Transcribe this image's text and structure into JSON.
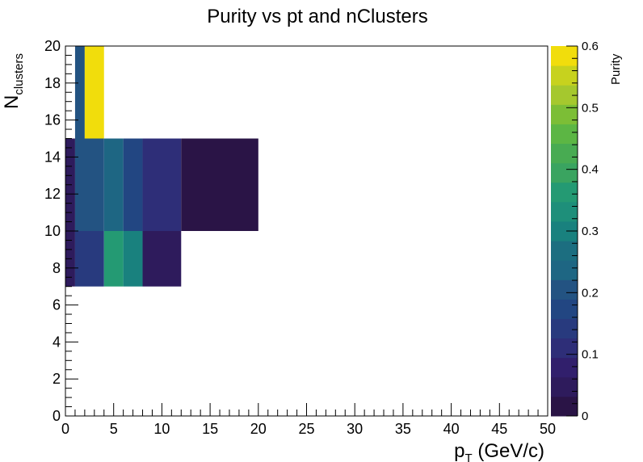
{
  "chart_data": {
    "type": "heatmap",
    "title": "Purity vs pt and nClusters",
    "xlabel_main": "p",
    "xlabel_sub": "T",
    "xlabel_rest": " (GeV/c)",
    "ylabel_main": "N",
    "ylabel_sub": "clusters",
    "zlabel": "Purity",
    "xlim": [
      0,
      50
    ],
    "ylim": [
      0,
      20
    ],
    "zlim": [
      0,
      0.6
    ],
    "x_ticks": [
      "0",
      "5",
      "10",
      "15",
      "20",
      "25",
      "30",
      "35",
      "40",
      "45",
      "50"
    ],
    "y_ticks": [
      "0",
      "2",
      "4",
      "6",
      "8",
      "10",
      "12",
      "14",
      "16",
      "18",
      "20"
    ],
    "z_ticks": [
      "0",
      "0.1",
      "0.2",
      "0.3",
      "0.4",
      "0.5",
      "0.6"
    ],
    "cells": [
      {
        "x0": 0,
        "x1": 1,
        "y0": 7,
        "y1": 10,
        "z": 0.05
      },
      {
        "x0": 1,
        "x1": 4,
        "y0": 7,
        "y1": 10,
        "z": 0.14
      },
      {
        "x0": 4,
        "x1": 6,
        "y0": 7,
        "y1": 10,
        "z": 0.35
      },
      {
        "x0": 6,
        "x1": 8,
        "y0": 7,
        "y1": 10,
        "z": 0.31
      },
      {
        "x0": 8,
        "x1": 12,
        "y0": 7,
        "y1": 10,
        "z": 0.06
      },
      {
        "x0": 0,
        "x1": 1,
        "y0": 10,
        "y1": 15,
        "z": 0.05
      },
      {
        "x0": 1,
        "x1": 4,
        "y0": 10,
        "y1": 15,
        "z": 0.19
      },
      {
        "x0": 4,
        "x1": 6,
        "y0": 10,
        "y1": 15,
        "z": 0.23
      },
      {
        "x0": 6,
        "x1": 8,
        "y0": 10,
        "y1": 15,
        "z": 0.16
      },
      {
        "x0": 8,
        "x1": 12,
        "y0": 10,
        "y1": 15,
        "z": 0.12
      },
      {
        "x0": 12,
        "x1": 20,
        "y0": 10,
        "y1": 15,
        "z": 0.01
      },
      {
        "x0": 1,
        "x1": 2,
        "y0": 15,
        "y1": 20,
        "z": 0.21
      },
      {
        "x0": 2,
        "x1": 4,
        "y0": 15,
        "y1": 20,
        "z": 0.6
      }
    ],
    "palette": [
      "#2a1446",
      "#2e1b5c",
      "#311f6c",
      "#2e2e78",
      "#283a7e",
      "#224682",
      "#235382",
      "#1e6683",
      "#1c6e80",
      "#19817e",
      "#1e8f7a",
      "#249a73",
      "#3aa460",
      "#48ab52",
      "#5cb644",
      "#7cbe36",
      "#a5c82e",
      "#c7d21e",
      "#f1dd0c"
    ],
    "grid": false,
    "colorbar": "right"
  }
}
